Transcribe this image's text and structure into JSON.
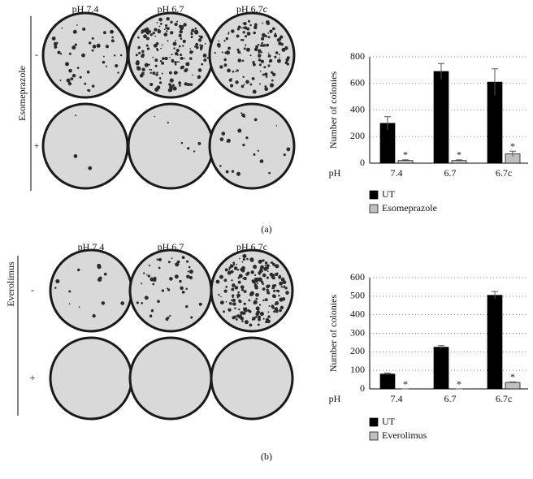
{
  "panels": [
    {
      "label": "(a)",
      "drug": "Esomeprazole",
      "columns": [
        "pH 7.4",
        "pH 6.7",
        "pH 6.7c"
      ],
      "rows": [
        "-",
        "+"
      ]
    },
    {
      "label": "(b)",
      "drug": "Everolimus",
      "columns": [
        "pH 7.4",
        "pH 6.7",
        "pH 6.7c"
      ],
      "rows": [
        "-",
        "+"
      ]
    }
  ],
  "chart_data": [
    {
      "type": "bar",
      "y_label": "Number of colonies",
      "x_label": "pH",
      "categories": [
        "7.4",
        "6.7",
        "6.7c"
      ],
      "series": [
        {
          "name": "UT",
          "color": "#000000",
          "values": [
            300,
            690,
            610
          ],
          "errors": [
            50,
            60,
            100
          ]
        },
        {
          "name": "Esomeprazole",
          "color": "#c0c0c0",
          "values": [
            20,
            20,
            70
          ],
          "errors": [
            5,
            5,
            20
          ],
          "markers": [
            "*",
            "*",
            "*"
          ]
        }
      ],
      "ylim": [
        0,
        800
      ],
      "yticks": [
        0,
        200,
        400,
        600,
        800
      ],
      "grid": true
    },
    {
      "type": "bar",
      "y_label": "Number of colonies",
      "x_label": "pH",
      "categories": [
        "7.4",
        "6.7",
        "6.7c"
      ],
      "series": [
        {
          "name": "UT",
          "color": "#000000",
          "values": [
            80,
            225,
            505
          ],
          "errors": [
            5,
            8,
            20
          ]
        },
        {
          "name": "Everolimus",
          "color": "#c0c0c0",
          "values": [
            0,
            0,
            35
          ],
          "errors": [
            0,
            0,
            3
          ],
          "markers": [
            "*",
            "*",
            "*"
          ]
        }
      ],
      "ylim": [
        0,
        600
      ],
      "yticks": [
        0,
        100,
        200,
        300,
        400,
        500,
        600
      ],
      "grid": true
    }
  ]
}
